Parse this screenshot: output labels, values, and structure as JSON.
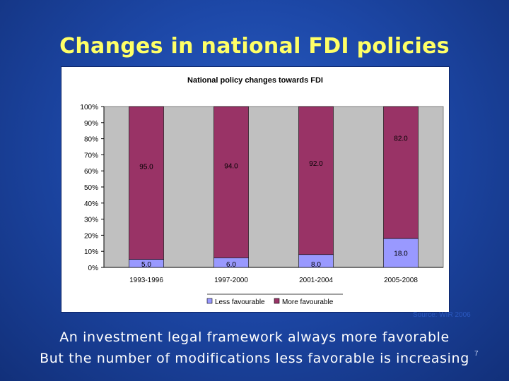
{
  "slide": {
    "title": "Changes in national FDI policies",
    "source": "Source: WIR 2006",
    "caption_line1": "An investment legal framework always more favorable",
    "caption_line2": "But the number of modifications less favorable is increasing",
    "page_number": "7"
  },
  "chart_data": {
    "type": "bar",
    "stacked": true,
    "percent": true,
    "title": "National policy changes towards FDI",
    "categories": [
      "1993-1996",
      "1997-2000",
      "2001-2004",
      "2005-2008"
    ],
    "series": [
      {
        "name": "Less favourable",
        "values": [
          5.0,
          6.0,
          8.0,
          18.0
        ],
        "labels": [
          "5.0",
          "6.0",
          "8.0",
          "18.0"
        ],
        "color": "#9999ff"
      },
      {
        "name": "More favourable",
        "values": [
          95.0,
          94.0,
          92.0,
          82.0
        ],
        "labels": [
          "95.0",
          "94.0",
          "92.0",
          "82.0"
        ],
        "color": "#993366"
      }
    ],
    "y_ticks": [
      "0%",
      "10%",
      "20%",
      "30%",
      "40%",
      "50%",
      "60%",
      "70%",
      "80%",
      "90%",
      "100%"
    ],
    "ylim": [
      0,
      100
    ],
    "legend_position": "bottom",
    "plot_background": "#c0c0c0"
  }
}
